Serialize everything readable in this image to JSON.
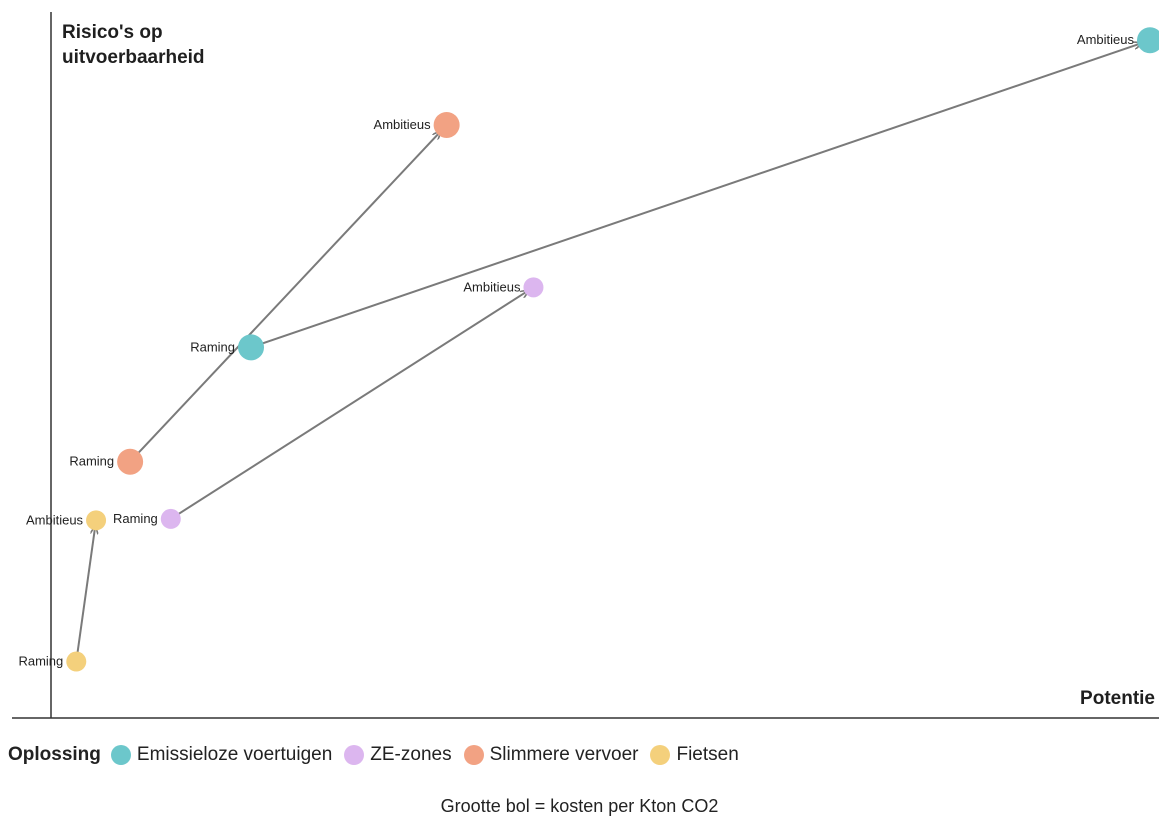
{
  "chart_data": {
    "type": "scatter",
    "ylabel": "Risico's op\nuitvoerbaarheid",
    "xlabel": "Potentie",
    "legend_title": "Oplossing",
    "size_note": "Grootte bol = kosten per Kton CO2",
    "legend_placement": "bottom-left",
    "grid": false,
    "series": [
      {
        "name": "Emissieloze voertuigen",
        "color": "#6cc7cb",
        "size": 13,
        "points": [
          {
            "label": "Raming",
            "x": 0.182,
            "y": 0.525
          },
          {
            "label": "Ambitieus",
            "x": 1.0,
            "y": 0.96
          }
        ]
      },
      {
        "name": "ZE-zones",
        "color": "#dcb6ef",
        "size": 10,
        "points": [
          {
            "label": "Raming",
            "x": 0.109,
            "y": 0.282
          },
          {
            "label": "Ambitieus",
            "x": 0.439,
            "y": 0.61
          }
        ]
      },
      {
        "name": "Slimmere vervoer",
        "color": "#f2a283",
        "size": 13,
        "points": [
          {
            "label": "Raming",
            "x": 0.072,
            "y": 0.363
          },
          {
            "label": "Ambitieus",
            "x": 0.36,
            "y": 0.84
          }
        ]
      },
      {
        "name": "Fietsen",
        "color": "#f4d07c",
        "size": 10,
        "points": [
          {
            "label": "Raming",
            "x": 0.023,
            "y": 0.08
          },
          {
            "label": "Ambitieus",
            "x": 0.041,
            "y": 0.28
          }
        ]
      }
    ]
  }
}
